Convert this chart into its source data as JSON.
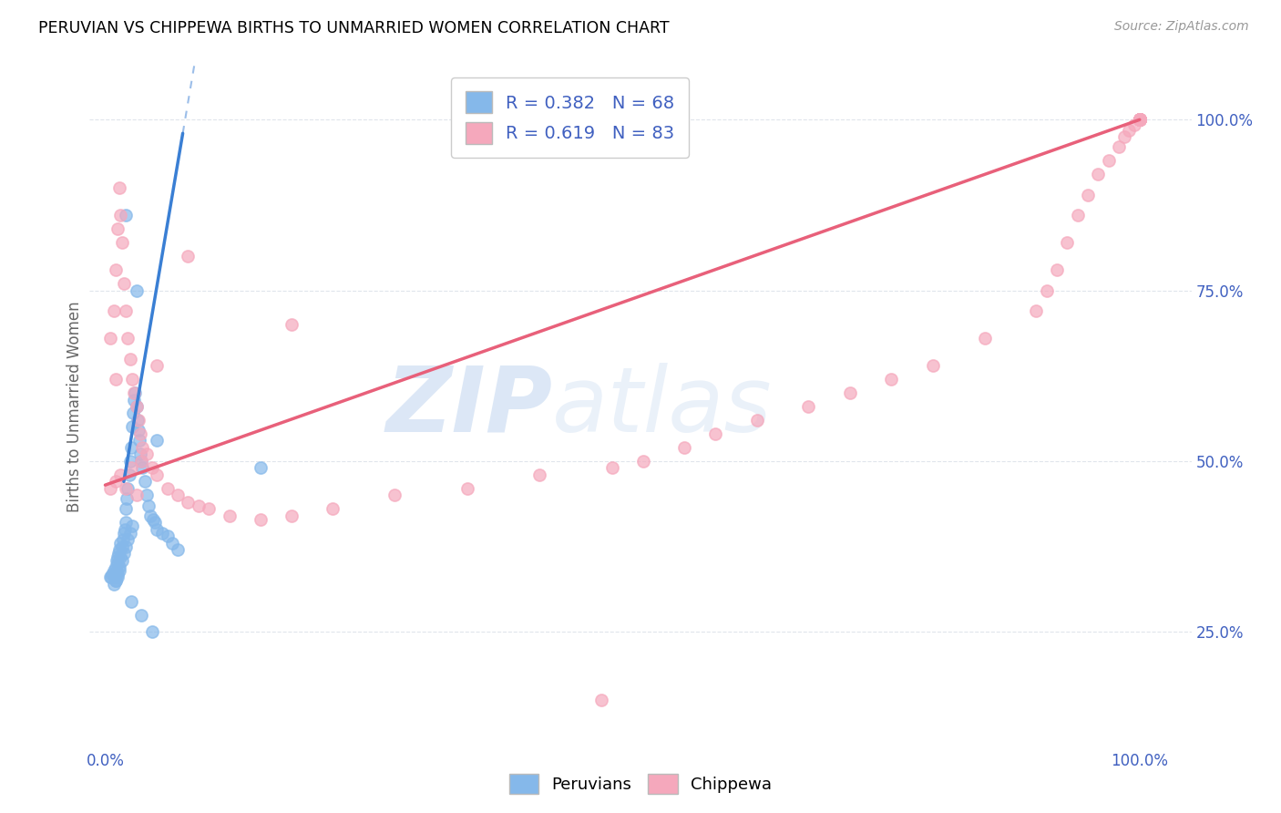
{
  "title": "PERUVIAN VS CHIPPEWA BIRTHS TO UNMARRIED WOMEN CORRELATION CHART",
  "source": "Source: ZipAtlas.com",
  "ylabel": "Births to Unmarried Women",
  "peruvian_R": 0.382,
  "peruvian_N": 68,
  "chippewa_R": 0.619,
  "chippewa_N": 83,
  "peruvian_color": "#85B8EA",
  "chippewa_color": "#F5A8BC",
  "peruvian_line_color": "#3A7FD4",
  "chippewa_line_color": "#E8607A",
  "watermark_zip": "ZIP",
  "watermark_atlas": "atlas",
  "watermark_color_zip": "#C5D8F0",
  "watermark_color_atlas": "#C5D8F0",
  "bg_color": "#FFFFFF",
  "grid_color": "#E0E5EC",
  "tick_color": "#4060C0",
  "ylabel_color": "#666666",
  "peru_x": [
    0.005,
    0.006,
    0.007,
    0.008,
    0.009,
    0.01,
    0.01,
    0.011,
    0.011,
    0.012,
    0.012,
    0.013,
    0.014,
    0.015,
    0.015,
    0.016,
    0.017,
    0.018,
    0.019,
    0.02,
    0.02,
    0.021,
    0.022,
    0.023,
    0.024,
    0.025,
    0.026,
    0.027,
    0.028,
    0.029,
    0.03,
    0.031,
    0.032,
    0.033,
    0.034,
    0.035,
    0.036,
    0.038,
    0.04,
    0.042,
    0.044,
    0.046,
    0.048,
    0.05,
    0.055,
    0.06,
    0.065,
    0.07,
    0.01,
    0.012,
    0.014,
    0.016,
    0.018,
    0.02,
    0.022,
    0.024,
    0.026,
    0.008,
    0.01,
    0.012,
    0.014,
    0.02,
    0.03,
    0.05,
    0.15,
    0.025,
    0.035,
    0.045
  ],
  "peru_y": [
    0.33,
    0.33,
    0.335,
    0.34,
    0.33,
    0.335,
    0.345,
    0.34,
    0.355,
    0.35,
    0.36,
    0.365,
    0.37,
    0.38,
    0.36,
    0.375,
    0.385,
    0.395,
    0.4,
    0.41,
    0.43,
    0.445,
    0.46,
    0.48,
    0.5,
    0.52,
    0.55,
    0.57,
    0.59,
    0.6,
    0.58,
    0.56,
    0.545,
    0.53,
    0.51,
    0.5,
    0.49,
    0.47,
    0.45,
    0.435,
    0.42,
    0.415,
    0.41,
    0.4,
    0.395,
    0.39,
    0.38,
    0.37,
    0.325,
    0.335,
    0.345,
    0.355,
    0.365,
    0.375,
    0.385,
    0.395,
    0.405,
    0.32,
    0.325,
    0.33,
    0.34,
    0.86,
    0.75,
    0.53,
    0.49,
    0.295,
    0.275,
    0.25
  ],
  "chipp_x": [
    0.005,
    0.008,
    0.01,
    0.012,
    0.014,
    0.015,
    0.016,
    0.018,
    0.02,
    0.022,
    0.024,
    0.026,
    0.028,
    0.03,
    0.032,
    0.034,
    0.036,
    0.04,
    0.045,
    0.05,
    0.06,
    0.07,
    0.08,
    0.09,
    0.1,
    0.12,
    0.15,
    0.18,
    0.22,
    0.28,
    0.35,
    0.42,
    0.49,
    0.52,
    0.56,
    0.59,
    0.63,
    0.68,
    0.72,
    0.76,
    0.8,
    0.85,
    0.9,
    0.91,
    0.92,
    0.93,
    0.94,
    0.95,
    0.96,
    0.97,
    0.98,
    0.985,
    0.99,
    0.995,
    1.0,
    1.0,
    1.0,
    1.0,
    1.0,
    1.0,
    1.0,
    1.0,
    1.0,
    1.0,
    1.0,
    1.0,
    1.0,
    1.0,
    1.0,
    0.01,
    0.02,
    0.03,
    0.005,
    0.015,
    0.025,
    0.035,
    0.48,
    0.01,
    0.05,
    0.08,
    0.18
  ],
  "chipp_y": [
    0.68,
    0.72,
    0.78,
    0.84,
    0.9,
    0.86,
    0.82,
    0.76,
    0.72,
    0.68,
    0.65,
    0.62,
    0.6,
    0.58,
    0.56,
    0.54,
    0.52,
    0.51,
    0.49,
    0.48,
    0.46,
    0.45,
    0.44,
    0.435,
    0.43,
    0.42,
    0.415,
    0.42,
    0.43,
    0.45,
    0.46,
    0.48,
    0.49,
    0.5,
    0.52,
    0.54,
    0.56,
    0.58,
    0.6,
    0.62,
    0.64,
    0.68,
    0.72,
    0.75,
    0.78,
    0.82,
    0.86,
    0.89,
    0.92,
    0.94,
    0.96,
    0.975,
    0.985,
    0.992,
    1.0,
    1.0,
    1.0,
    1.0,
    1.0,
    1.0,
    1.0,
    1.0,
    1.0,
    1.0,
    1.0,
    1.0,
    1.0,
    1.0,
    1.0,
    0.47,
    0.46,
    0.45,
    0.46,
    0.48,
    0.49,
    0.5,
    0.15,
    0.62,
    0.64,
    0.8,
    0.7
  ],
  "peru_line_x": [
    0.018,
    0.075
  ],
  "peru_line_y": [
    0.47,
    0.98
  ],
  "chipp_line_x": [
    0.0,
    1.0
  ],
  "chipp_line_y": [
    0.465,
    1.0
  ],
  "xlim": [
    -0.015,
    1.05
  ],
  "ylim": [
    0.08,
    1.08
  ],
  "ytick_vals": [
    0.25,
    0.5,
    0.75,
    1.0
  ],
  "ytick_labels": [
    "25.0%",
    "50.0%",
    "75.0%",
    "100.0%"
  ],
  "xtick_vals": [
    0.0,
    1.0
  ],
  "xtick_labels": [
    "0.0%",
    "100.0%"
  ]
}
